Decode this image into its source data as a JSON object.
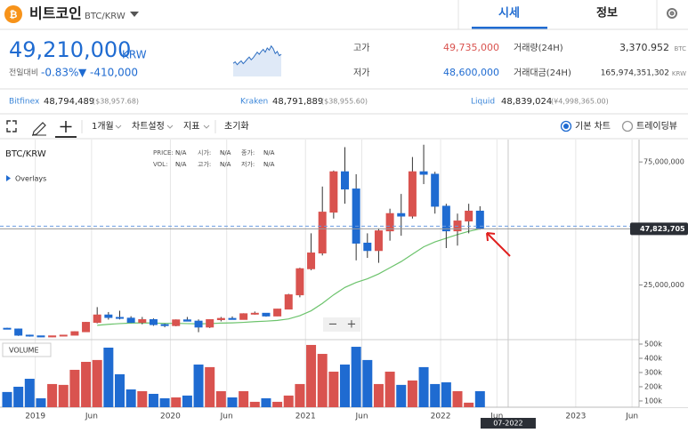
{
  "header": {
    "coin_name": "비트코인",
    "symbol": "BTC/KRW",
    "tabs": [
      "시세",
      "정보"
    ]
  },
  "price": {
    "value": "49,210,000",
    "unit": "KRW",
    "change_label": "전일대비",
    "change_pct": "-0.83%",
    "change": "▼ -410,000",
    "sparkline": [
      62,
      58,
      66,
      60,
      55,
      63,
      57,
      50,
      44,
      52,
      46,
      38,
      30,
      36,
      28,
      22,
      30,
      18,
      24,
      12,
      20,
      34,
      28,
      40,
      36
    ]
  },
  "stats": [
    {
      "label": "고가",
      "value": "49,735,000"
    },
    {
      "label": "저가",
      "value": "48,600,000"
    },
    {
      "label": "거래량(24H)",
      "value": "3,370.952",
      "unit": "BTC"
    },
    {
      "label": "거래대금(24H)",
      "value": "165,974,351,302",
      "unit": "KRW"
    }
  ],
  "exchanges": [
    {
      "name": "Bitfinex",
      "price": "48,794,489",
      "foreign": "($38,957.68)"
    },
    {
      "name": "Kraken",
      "price": "48,791,889",
      "foreign": "($38,955.60)"
    },
    {
      "name": "Liquid",
      "price": "48,839,024",
      "foreign": "(¥4,998,365.00)"
    }
  ],
  "toolbar": {
    "menus": [
      "1개월",
      "차트설정",
      "지표",
      "초기화"
    ],
    "chart_types": [
      "기본 차트",
      "트레이딩뷰"
    ]
  },
  "chart_data": {
    "type": "candlestick",
    "title": "BTC/KRW",
    "overlays": "Overlays",
    "volume_title": "VOLUME",
    "info": [
      {
        "label": "PRICE:",
        "value": "N/A"
      },
      {
        "label": "시가:",
        "value": "N/A"
      },
      {
        "label": "종가:",
        "value": "N/A"
      },
      {
        "label": "VOL:",
        "value": "N/A"
      },
      {
        "label": "고가:",
        "value": "N/A"
      },
      {
        "label": "저가:",
        "value": "N/A"
      }
    ],
    "zoom_controls": [
      "−",
      "+"
    ],
    "up_color": "#d9534f",
    "down_color": "#1f6bd1",
    "x": [
      "2018-10",
      "2018-11",
      "2018-12",
      "2019-01",
      "2019-02",
      "2019-03",
      "2019-04",
      "2019-05",
      "2019-06",
      "2019-07",
      "2019-08",
      "2019-09",
      "2019-10",
      "2019-11",
      "2019-12",
      "2020-01",
      "2020-02",
      "2020-03",
      "2020-04",
      "2020-05",
      "2020-06",
      "2020-07",
      "2020-08",
      "2020-09",
      "2020-10",
      "2020-11",
      "2020-12",
      "2021-01",
      "2021-02",
      "2021-03",
      "2021-04",
      "2021-05",
      "2021-06",
      "2021-07",
      "2021-08",
      "2021-09",
      "2021-10",
      "2021-11",
      "2021-12",
      "2022-01",
      "2022-02",
      "2022-03",
      "2022-04"
    ],
    "open": [
      7400000,
      7100000,
      4600000,
      4300000,
      3900000,
      4300000,
      4600000,
      6000000,
      9800000,
      12800000,
      11800000,
      11500000,
      9800000,
      10900000,
      8900000,
      8500000,
      10800000,
      10300000,
      7900000,
      10900000,
      11400000,
      11000000,
      13300000,
      13500000,
      12400000,
      15200000,
      21000000,
      31600000,
      38000000,
      54600000,
      71000000,
      64000000,
      42000000,
      39000000,
      47000000,
      54000000,
      53000000,
      71000000,
      70000000,
      57000000,
      47000000,
      51000000,
      55000000
    ],
    "high": [
      7600000,
      7300000,
      4800000,
      4400000,
      4400000,
      4700000,
      6200000,
      10000000,
      16000000,
      14000000,
      14500000,
      12300000,
      12000000,
      11400000,
      9300000,
      11000000,
      12000000,
      11000000,
      11000000,
      12000000,
      12200000,
      13500000,
      14200000,
      13600000,
      15300000,
      21400000,
      32000000,
      46000000,
      65000000,
      71500000,
      81000000,
      70000000,
      46000000,
      48000000,
      56000000,
      62000000,
      77000000,
      82000000,
      71000000,
      58000000,
      54000000,
      58000000,
      57000000
    ],
    "low": [
      7100000,
      4300000,
      4000000,
      3800000,
      3800000,
      4200000,
      4600000,
      5900000,
      9400000,
      10900000,
      11000000,
      9600000,
      9000000,
      8400000,
      7800000,
      8200000,
      10200000,
      5800000,
      7500000,
      10200000,
      10900000,
      10900000,
      12900000,
      12100000,
      12300000,
      15100000,
      20000000,
      31000000,
      37000000,
      52000000,
      58000000,
      35000000,
      36000000,
      34000000,
      43000000,
      45000000,
      52000000,
      66000000,
      54000000,
      40000000,
      41000000,
      46000000,
      47500000
    ],
    "close": [
      7100000,
      4600000,
      4300000,
      3900000,
      4300000,
      4600000,
      6000000,
      9800000,
      12800000,
      11800000,
      11500000,
      9800000,
      10900000,
      8900000,
      8500000,
      10800000,
      10300000,
      7900000,
      10900000,
      11400000,
      11000000,
      13300000,
      13500000,
      12400000,
      15200000,
      21000000,
      31600000,
      38000000,
      54600000,
      71000000,
      64000000,
      42000000,
      39000000,
      47000000,
      54000000,
      53000000,
      71000000,
      70000000,
      57000000,
      47000000,
      51000000,
      55000000,
      47823705
    ],
    "volume": [
      163000,
      200000,
      256000,
      119000,
      219000,
      213000,
      319000,
      375000,
      388000,
      475000,
      288000,
      181000,
      169000,
      150000,
      119000,
      125000,
      138000,
      356000,
      338000,
      169000,
      125000,
      169000,
      94000,
      119000,
      94000,
      138000,
      219000,
      494000,
      431000,
      306000,
      356000,
      481000,
      388000,
      219000,
      306000,
      213000,
      244000,
      338000,
      219000,
      231000,
      169000,
      88000,
      169000
    ],
    "ma": {
      "color": "#6cc36c",
      "values": [
        null,
        null,
        null,
        null,
        null,
        null,
        null,
        null,
        8600000,
        9000000,
        9300000,
        9500000,
        9600000,
        9500000,
        9400000,
        9400000,
        9300000,
        9200000,
        9300000,
        9500000,
        9600000,
        9800000,
        10100000,
        10300000,
        10600000,
        11200000,
        12500000,
        14500000,
        17500000,
        21000000,
        24000000,
        26000000,
        27500000,
        29500000,
        32000000,
        34500000,
        37500000,
        40500000,
        42500000,
        44000000,
        45500000,
        46800000,
        47800000
      ]
    },
    "ylim": [
      3500000,
      83000000
    ],
    "yticks": [
      {
        "value": 25000000,
        "label": "25,000,000"
      },
      {
        "value": 75000000,
        "label": "75,000,000"
      }
    ],
    "volume_lim": [
      56000,
      525000
    ],
    "volume_ticks": [
      {
        "value": 100000,
        "label": "100k"
      },
      {
        "value": 200000,
        "label": "200k"
      },
      {
        "value": 300000,
        "label": "300k"
      },
      {
        "value": 400000,
        "label": "400k"
      },
      {
        "value": 500000,
        "label": "500k"
      }
    ],
    "xticks": [
      {
        "value": "2019-01",
        "label": "2019"
      },
      {
        "value": "2019-06",
        "label": "Jun"
      },
      {
        "value": "2020-01",
        "label": "2020"
      },
      {
        "value": "2020-06",
        "label": "Jun"
      },
      {
        "value": "2021-01",
        "label": "2021"
      },
      {
        "value": "2021-06",
        "label": "Jun"
      },
      {
        "value": "2022-01",
        "label": "2022"
      },
      {
        "value": "2022-06",
        "label": "Jun"
      },
      {
        "value": "2023-01",
        "label": "2023"
      },
      {
        "value": "2023-06",
        "label": "Jun"
      }
    ],
    "last_price": {
      "value": 47823705,
      "label": "47,823,705"
    },
    "crosshair": {
      "value": "2022-07",
      "label": "07-2022"
    },
    "grid": true
  }
}
